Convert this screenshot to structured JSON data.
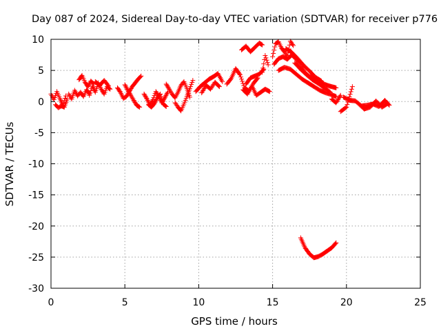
{
  "chart_data": {
    "type": "scatter",
    "title": "Day 087 of 2024, Sidereal Day-to-day VTEC variation (SDTVAR) for receiver p776",
    "xlabel": "GPS time / hours",
    "ylabel": "SDTVAR / TECUs",
    "xlim": [
      0,
      25
    ],
    "ylim": [
      -30,
      10
    ],
    "xticks": [
      0,
      5,
      10,
      15,
      20,
      25
    ],
    "yticks": [
      -30,
      -25,
      -20,
      -15,
      -10,
      -5,
      0,
      5,
      10
    ],
    "grid": true,
    "marker": "+",
    "color": "#ff0000",
    "series": [
      {
        "name": "SDTVAR",
        "segments": [
          {
            "x": [
              0.0,
              0.2,
              0.4,
              0.6,
              0.8,
              1.0
            ],
            "y": [
              1.2,
              0.3,
              1.6,
              0.5,
              -0.6,
              0.9
            ]
          },
          {
            "x": [
              0.3,
              0.5,
              0.7,
              0.9,
              1.1
            ],
            "y": [
              -0.5,
              -1.0,
              -0.7,
              -0.9,
              0.4
            ]
          },
          {
            "x": [
              1.2,
              1.4,
              1.6,
              1.8,
              2.0,
              2.2,
              2.4,
              2.6
            ],
            "y": [
              1.2,
              0.4,
              1.8,
              0.9,
              1.5,
              0.8,
              1.9,
              1.2
            ]
          },
          {
            "x": [
              1.9,
              2.1,
              2.3,
              2.5,
              2.7,
              2.9
            ],
            "y": [
              3.5,
              4.2,
              3.1,
              2.4,
              3.3,
              2.8
            ]
          },
          {
            "x": [
              2.6,
              2.8,
              3.0,
              3.2,
              3.4,
              3.6,
              3.8,
              4.0
            ],
            "y": [
              1.0,
              2.5,
              1.5,
              3.0,
              2.0,
              1.2,
              2.4,
              2.0
            ]
          },
          {
            "x": [
              3.0,
              3.3,
              3.6,
              3.9
            ],
            "y": [
              3.2,
              2.6,
              3.4,
              2.5
            ]
          },
          {
            "x": [
              4.5,
              4.7,
              4.9,
              5.1,
              5.3,
              5.5,
              5.7,
              5.9,
              6.1
            ],
            "y": [
              2.2,
              1.5,
              0.5,
              0.8,
              1.6,
              2.4,
              3.0,
              3.6,
              4.1
            ]
          },
          {
            "x": [
              5.0,
              5.2,
              5.4,
              5.6,
              5.8,
              6.0
            ],
            "y": [
              2.7,
              1.8,
              1.0,
              0.2,
              -0.6,
              -0.9
            ]
          },
          {
            "x": [
              6.3,
              6.5,
              6.7,
              6.9,
              7.1,
              7.3,
              7.5,
              7.7,
              7.9
            ],
            "y": [
              1.2,
              0.4,
              -0.6,
              0.3,
              1.6,
              0.8,
              -0.2,
              0.6,
              1.5
            ]
          },
          {
            "x": [
              6.6,
              6.8,
              7.0,
              7.2,
              7.4,
              7.6,
              7.8
            ],
            "y": [
              -0.5,
              -0.9,
              -0.3,
              0.6,
              1.2,
              -0.4,
              -0.8
            ]
          },
          {
            "x": [
              7.8,
              8.0,
              8.2,
              8.4,
              8.6,
              8.8,
              9.0,
              9.2,
              9.4
            ],
            "y": [
              2.8,
              2.0,
              1.2,
              0.6,
              1.5,
              2.6,
              3.2,
              2.1,
              0.7
            ]
          },
          {
            "x": [
              8.4,
              8.6,
              8.8,
              9.0,
              9.2,
              9.4,
              9.6
            ],
            "y": [
              -0.2,
              -0.9,
              -1.5,
              -0.4,
              0.8,
              2.1,
              3.4
            ]
          },
          {
            "x": [
              9.8,
              10.1,
              10.4,
              10.7,
              11.0,
              11.3,
              11.6
            ],
            "y": [
              1.6,
              2.4,
              3.0,
              3.6,
              4.0,
              4.5,
              3.2
            ]
          },
          {
            "x": [
              10.2,
              10.5,
              10.8,
              11.1,
              11.4
            ],
            "y": [
              1.4,
              2.6,
              2.0,
              3.1,
              2.4
            ]
          },
          {
            "x": [
              11.9,
              12.2,
              12.5,
              12.8,
              13.1,
              13.4,
              13.7,
              14.0
            ],
            "y": [
              2.8,
              3.7,
              5.3,
              4.3,
              2.2,
              1.7,
              2.9,
              3.8
            ]
          },
          {
            "x": [
              12.9,
              13.2,
              13.5,
              13.8,
              14.1,
              14.3
            ],
            "y": [
              8.3,
              8.9,
              8.0,
              8.7,
              9.4,
              9.1
            ]
          },
          {
            "x": [
              13.2,
              13.5,
              13.8,
              14.1,
              14.4
            ],
            "y": [
              2.8,
              3.8,
              4.1,
              4.4,
              5.2
            ]
          },
          {
            "x": [
              13.0,
              13.3,
              13.6,
              13.9,
              14.2,
              14.5,
              14.8
            ],
            "y": [
              1.9,
              1.2,
              2.5,
              1.0,
              1.5,
              2.0,
              1.6
            ]
          },
          {
            "x": [
              14.3,
              14.5,
              14.7
            ],
            "y": [
              4.7,
              7.4,
              5.9
            ]
          },
          {
            "x": [
              15.0,
              15.2,
              15.4,
              15.6,
              15.8,
              16.0,
              16.2,
              16.4
            ],
            "y": [
              7.2,
              9.3,
              9.6,
              8.6,
              8.0,
              7.2,
              9.7,
              9.0
            ]
          },
          {
            "x": [
              15.1,
              15.4,
              15.7,
              16.0,
              16.3,
              16.6,
              16.9,
              17.2,
              17.5,
              17.8,
              18.1,
              18.4,
              18.7,
              19.0,
              19.3
            ],
            "y": [
              6.0,
              6.9,
              7.2,
              6.8,
              7.5,
              6.8,
              5.6,
              4.6,
              4.0,
              3.7,
              3.3,
              2.9,
              2.6,
              2.4,
              2.2
            ]
          },
          {
            "x": [
              15.4,
              15.8,
              16.2,
              16.6,
              17.0,
              17.4,
              17.8,
              18.2,
              18.6,
              19.0,
              19.3
            ],
            "y": [
              5.0,
              5.5,
              5.2,
              4.4,
              3.6,
              3.0,
              2.4,
              1.8,
              1.4,
              1.1,
              0.8
            ]
          },
          {
            "x": [
              15.9,
              16.3,
              16.7,
              17.1,
              17.5,
              17.9,
              18.3
            ],
            "y": [
              8.5,
              7.9,
              6.9,
              5.8,
              4.9,
              3.9,
              3.3
            ]
          },
          {
            "x": [
              16.5,
              16.9,
              17.3,
              17.7,
              18.1,
              18.5,
              18.9
            ],
            "y": [
              6.2,
              5.2,
              4.3,
              3.5,
              2.9,
              2.2,
              1.5
            ]
          },
          {
            "x": [
              19.0,
              19.3,
              19.6
            ],
            "y": [
              0.4,
              -0.2,
              1.0
            ]
          },
          {
            "x": [
              19.8,
              20.2,
              20.6,
              21.0,
              21.4,
              21.8,
              22.2,
              22.6,
              22.9
            ],
            "y": [
              0.7,
              0.2,
              0.1,
              -0.7,
              -0.6,
              -0.4,
              -0.8,
              0.2,
              -0.6
            ]
          },
          {
            "x": [
              19.6,
              20.0,
              20.4
            ],
            "y": [
              -1.6,
              -0.9,
              2.4
            ]
          },
          {
            "x": [
              20.8,
              21.2,
              21.6,
              22.0,
              22.4,
              22.8
            ],
            "y": [
              -0.3,
              -1.2,
              -0.9,
              0.1,
              -0.9,
              -0.3
            ]
          },
          {
            "x": [
              16.9,
              17.2,
              17.5,
              17.8,
              18.1,
              18.4,
              18.7,
              19.0,
              19.3
            ],
            "y": [
              -21.9,
              -23.5,
              -24.5,
              -25.1,
              -24.9,
              -24.5,
              -24.0,
              -23.5,
              -22.7
            ]
          }
        ]
      }
    ]
  }
}
